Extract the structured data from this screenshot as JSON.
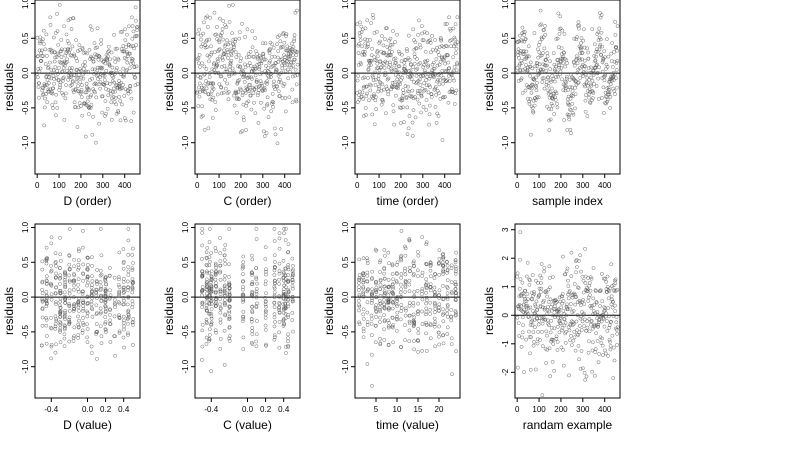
{
  "chart_data": [
    {
      "type": "scatter",
      "ylabel": "residuals",
      "xlabel": "D (order)",
      "xlim": [
        -10,
        470
      ],
      "ylim": [
        -1.45,
        1.05
      ],
      "xticks": [
        0,
        100,
        200,
        300,
        400
      ],
      "xtick_labels": [
        "0",
        "100",
        "200",
        "300",
        "400"
      ],
      "yticks": [
        -1.0,
        -0.5,
        0.0,
        0.5,
        1.0
      ],
      "ytick_labels": [
        "-1.0",
        "-0.5",
        "0.0",
        "0.5",
        "1.0"
      ],
      "reference_line_y": 0,
      "n_points": 460,
      "point_pattern": "sequence",
      "seed": 11
    },
    {
      "type": "scatter",
      "ylabel": "residuals",
      "xlabel": "C (order)",
      "xlim": [
        -10,
        470
      ],
      "ylim": [
        -1.45,
        1.05
      ],
      "xticks": [
        0,
        100,
        200,
        300,
        400
      ],
      "xtick_labels": [
        "0",
        "100",
        "200",
        "300",
        "400"
      ],
      "yticks": [
        -1.0,
        -0.5,
        0.0,
        0.5,
        1.0
      ],
      "ytick_labels": [
        "-1.0",
        "-0.5",
        "0.0",
        "0.5",
        "1.0"
      ],
      "reference_line_y": 0,
      "n_points": 460,
      "point_pattern": "sequence",
      "seed": 23
    },
    {
      "type": "scatter",
      "ylabel": "residuals",
      "xlabel": "time (order)",
      "xlim": [
        -10,
        470
      ],
      "ylim": [
        -1.45,
        1.05
      ],
      "xticks": [
        0,
        100,
        200,
        300,
        400
      ],
      "xtick_labels": [
        "0",
        "100",
        "200",
        "300",
        "400"
      ],
      "yticks": [
        -1.0,
        -0.5,
        0.0,
        0.5,
        1.0
      ],
      "ytick_labels": [
        "-1.0",
        "-0.5",
        "0.0",
        "0.5",
        "1.0"
      ],
      "reference_line_y": 0,
      "n_points": 460,
      "point_pattern": "sequence",
      "seed": 37
    },
    {
      "type": "scatter",
      "ylabel": "residuals",
      "xlabel": "sample index",
      "xlim": [
        -10,
        470
      ],
      "ylim": [
        -1.45,
        1.05
      ],
      "xticks": [
        0,
        100,
        200,
        300,
        400
      ],
      "xtick_labels": [
        "0",
        "100",
        "200",
        "300",
        "400"
      ],
      "yticks": [
        -1.0,
        -0.5,
        0.0,
        0.5,
        1.0
      ],
      "ytick_labels": [
        "-1.0",
        "-0.5",
        "0.0",
        "0.5",
        "1.0"
      ],
      "reference_line_y": 0,
      "n_points": 460,
      "point_pattern": "wave",
      "seed": 41
    },
    {
      "type": "scatter",
      "ylabel": "residuals",
      "xlabel": "D (value)",
      "xlim": [
        -0.58,
        0.58
      ],
      "ylim": [
        -1.45,
        1.05
      ],
      "xticks": [
        -0.4,
        0.0,
        0.2,
        0.4
      ],
      "xtick_labels": [
        "-0.4",
        "0.0",
        "0.2",
        "0.4"
      ],
      "yticks": [
        -1.0,
        -0.5,
        0.0,
        0.5,
        1.0
      ],
      "ytick_labels": [
        "-1.0",
        "-0.5",
        "0.0",
        "0.5",
        "1.0"
      ],
      "reference_line_y": 0,
      "n_points": 460,
      "point_pattern": "columns",
      "x_levels": [
        -0.5,
        -0.45,
        -0.4,
        -0.35,
        -0.3,
        -0.25,
        -0.2,
        -0.15,
        -0.1,
        -0.05,
        0.0,
        0.05,
        0.1,
        0.15,
        0.2,
        0.25,
        0.3,
        0.35,
        0.4,
        0.45,
        0.5
      ],
      "x_jitter": 0.006,
      "seed": 53
    },
    {
      "type": "scatter",
      "ylabel": "residuals",
      "xlabel": "C (value)",
      "xlim": [
        -0.58,
        0.58
      ],
      "ylim": [
        -1.45,
        1.05
      ],
      "xticks": [
        -0.4,
        0.0,
        0.2,
        0.4
      ],
      "xtick_labels": [
        "-0.4",
        "0.0",
        "0.2",
        "0.4"
      ],
      "yticks": [
        -1.0,
        -0.5,
        0.0,
        0.5,
        1.0
      ],
      "ytick_labels": [
        "-1.0",
        "-0.5",
        "0.0",
        "0.5",
        "1.0"
      ],
      "reference_line_y": 0,
      "n_points": 460,
      "point_pattern": "columns",
      "x_levels": [
        -0.5,
        -0.45,
        -0.42,
        -0.4,
        -0.35,
        -0.3,
        -0.25,
        -0.2,
        -0.05,
        0.05,
        0.1,
        0.2,
        0.3,
        0.35,
        0.4,
        0.42,
        0.45,
        0.5
      ],
      "x_jitter": 0.005,
      "seed": 67
    },
    {
      "type": "scatter",
      "ylabel": "residuals",
      "xlabel": "time (value)",
      "xlim": [
        0,
        25
      ],
      "ylim": [
        -1.45,
        1.05
      ],
      "xticks": [
        5,
        10,
        15,
        20
      ],
      "xtick_labels": [
        "5",
        "10",
        "15",
        "20"
      ],
      "yticks": [
        -1.0,
        -0.5,
        0.0,
        0.5,
        1.0
      ],
      "ytick_labels": [
        "-1.0",
        "-0.5",
        "0.0",
        "0.5",
        "1.0"
      ],
      "reference_line_y": 0,
      "n_points": 460,
      "point_pattern": "columns",
      "x_levels": [
        1,
        2,
        3,
        4,
        5,
        6,
        7,
        8,
        9,
        10,
        11,
        12,
        13,
        14,
        15,
        16,
        17,
        18,
        19,
        20,
        21,
        22,
        23,
        24
      ],
      "x_jitter": 0.12,
      "seed": 79
    },
    {
      "type": "scatter",
      "ylabel": "residuals",
      "xlabel": "randam example",
      "xlim": [
        -10,
        470
      ],
      "ylim": [
        -2.9,
        3.2
      ],
      "xticks": [
        0,
        100,
        200,
        300,
        400
      ],
      "xtick_labels": [
        "0",
        "100",
        "200",
        "300",
        "400"
      ],
      "yticks": [
        -2,
        -1,
        0,
        1,
        2,
        3
      ],
      "ytick_labels": [
        "-2",
        "-1",
        "0",
        "1",
        "2",
        "3"
      ],
      "reference_line_y": 0,
      "n_points": 460,
      "point_pattern": "normal",
      "seed": 97
    }
  ]
}
